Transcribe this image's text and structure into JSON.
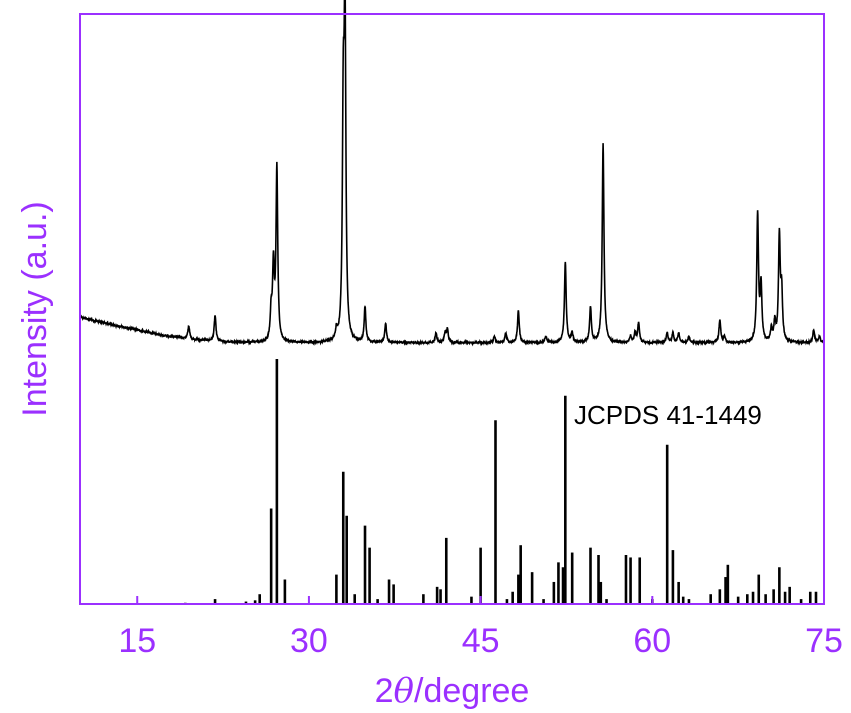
{
  "chart_data": {
    "type": "line",
    "title": "",
    "xlabel_prefix": "2",
    "xlabel_theta": "θ",
    "xlabel_suffix": "/degree",
    "ylabel": "Intensity (a.u.)",
    "xlim": [
      10,
      75
    ],
    "x_ticks": [
      15,
      30,
      45,
      60,
      75
    ],
    "y_ticks_shown": false,
    "axis_color": "#9b30ff",
    "annotation": "JCPDS 41-1449",
    "series": [
      {
        "kind": "pattern",
        "color": "#000000",
        "baseline": [
          [
            10,
            0.09
          ],
          [
            13,
            0.065
          ],
          [
            17,
            0.035
          ],
          [
            20,
            0.02
          ],
          [
            23,
            0.012
          ],
          [
            28,
            0.01
          ],
          [
            40,
            0.01
          ],
          [
            60,
            0.01
          ],
          [
            75,
            0.01
          ]
        ],
        "peaks": [
          [
            19.5,
            0.04
          ],
          [
            21.8,
            0.08
          ],
          [
            26.7,
            0.09
          ],
          [
            26.9,
            0.23
          ],
          [
            27.2,
            0.54
          ],
          [
            32.4,
            0.03
          ],
          [
            33.0,
            0.66
          ],
          [
            33.15,
            1.0
          ],
          [
            34.9,
            0.11
          ],
          [
            36.7,
            0.06
          ],
          [
            41.1,
            0.03
          ],
          [
            41.9,
            0.03
          ],
          [
            42.1,
            0.04
          ],
          [
            46.2,
            0.02
          ],
          [
            47.2,
            0.03
          ],
          [
            48.3,
            0.1
          ],
          [
            50.7,
            0.02
          ],
          [
            52.4,
            0.25
          ],
          [
            53.0,
            0.03
          ],
          [
            54.6,
            0.11
          ],
          [
            55.7,
            0.62
          ],
          [
            58.1,
            0.02
          ],
          [
            58.5,
            0.03
          ],
          [
            58.8,
            0.06
          ],
          [
            61.3,
            0.03
          ],
          [
            61.8,
            0.03
          ],
          [
            62.3,
            0.03
          ],
          [
            63.2,
            0.02
          ],
          [
            65.9,
            0.07
          ],
          [
            66.3,
            0.02
          ],
          [
            69.2,
            0.4
          ],
          [
            69.5,
            0.17
          ],
          [
            70.4,
            0.04
          ],
          [
            70.7,
            0.06
          ],
          [
            71.1,
            0.33
          ],
          [
            71.3,
            0.15
          ],
          [
            74.1,
            0.04
          ],
          [
            74.6,
            0.02
          ]
        ]
      },
      {
        "kind": "sticks",
        "name": "JCPDS 41-1449",
        "color": "#000000",
        "sticks": [
          [
            19.2,
            0.005
          ],
          [
            21.8,
            0.02
          ],
          [
            24.5,
            0.01
          ],
          [
            25.3,
            0.015
          ],
          [
            25.7,
            0.04
          ],
          [
            26.7,
            0.39
          ],
          [
            27.2,
            1.0
          ],
          [
            27.9,
            0.1
          ],
          [
            32.4,
            0.12
          ],
          [
            33.0,
            0.54
          ],
          [
            33.3,
            0.36
          ],
          [
            34.0,
            0.04
          ],
          [
            34.9,
            0.32
          ],
          [
            35.3,
            0.23
          ],
          [
            36.0,
            0.02
          ],
          [
            37.0,
            0.1
          ],
          [
            37.4,
            0.08
          ],
          [
            40.0,
            0.04
          ],
          [
            41.2,
            0.07
          ],
          [
            41.5,
            0.06
          ],
          [
            42.0,
            0.27
          ],
          [
            44.2,
            0.03
          ],
          [
            45.0,
            0.23
          ],
          [
            46.3,
            0.75
          ],
          [
            47.3,
            0.02
          ],
          [
            47.8,
            0.05
          ],
          [
            48.3,
            0.12
          ],
          [
            48.5,
            0.24
          ],
          [
            49.5,
            0.13
          ],
          [
            50.5,
            0.02
          ],
          [
            51.4,
            0.09
          ],
          [
            51.8,
            0.17
          ],
          [
            52.2,
            0.15
          ],
          [
            52.4,
            0.85
          ],
          [
            53.0,
            0.21
          ],
          [
            54.6,
            0.23
          ],
          [
            55.3,
            0.2
          ],
          [
            55.5,
            0.09
          ],
          [
            56.0,
            0.02
          ],
          [
            57.7,
            0.2
          ],
          [
            58.1,
            0.19
          ],
          [
            58.9,
            0.19
          ],
          [
            60.0,
            0.02
          ],
          [
            61.3,
            0.65
          ],
          [
            61.8,
            0.22
          ],
          [
            62.3,
            0.09
          ],
          [
            62.7,
            0.03
          ],
          [
            63.2,
            0.02
          ],
          [
            65.1,
            0.04
          ],
          [
            65.9,
            0.06
          ],
          [
            66.4,
            0.11
          ],
          [
            66.6,
            0.16
          ],
          [
            67.5,
            0.03
          ],
          [
            68.3,
            0.04
          ],
          [
            68.8,
            0.05
          ],
          [
            69.3,
            0.12
          ],
          [
            69.9,
            0.04
          ],
          [
            70.6,
            0.06
          ],
          [
            71.1,
            0.15
          ],
          [
            71.6,
            0.05
          ],
          [
            72.0,
            0.07
          ],
          [
            73.0,
            0.02
          ],
          [
            73.8,
            0.05
          ],
          [
            74.3,
            0.05
          ]
        ]
      }
    ]
  }
}
